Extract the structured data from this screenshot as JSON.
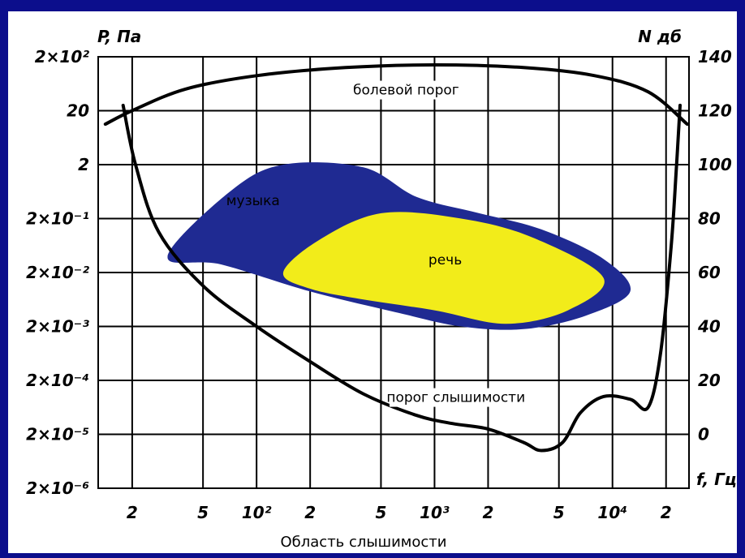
{
  "colors": {
    "background": "#0c0e8c",
    "music_area": "#1f2a92",
    "speech_area": "#f2ec1a",
    "grid": "#000000",
    "panel": "#ffffff"
  },
  "chart_data": {
    "type": "area",
    "title": "",
    "caption": "Область слышимости",
    "left_axis_label": "P, Па",
    "right_axis_label": "N дб",
    "x_axis_label": "f, Гц",
    "left_ticks": [
      "2×10²",
      "20",
      "2",
      "2×10⁻¹",
      "2×10⁻²",
      "2×10⁻³",
      "2×10⁻⁴",
      "2×10⁻⁵",
      "2×10⁻⁶"
    ],
    "right_ticks": [
      "140",
      "120",
      "100",
      "80",
      "60",
      "40",
      "20",
      "0"
    ],
    "bottom_ticks": [
      "2",
      "5",
      "10²",
      "2",
      "5",
      "10³",
      "2",
      "5",
      "10⁴",
      "2"
    ],
    "ylim_db": [
      -20,
      140
    ],
    "xlim_log10_hz": [
      1.11,
      4.43
    ],
    "grid": true,
    "annotations": {
      "pain": "болевой порог",
      "music": "музыка",
      "speech": "речь",
      "hearing": "порог слышимости"
    },
    "series": [
      {
        "key": "pain",
        "points": [
          [
            1.15,
            115
          ],
          [
            1.3,
            120
          ],
          [
            1.6,
            128
          ],
          [
            2.0,
            133
          ],
          [
            2.5,
            136
          ],
          [
            3.0,
            137
          ],
          [
            3.5,
            136
          ],
          [
            3.9,
            133
          ],
          [
            4.2,
            127
          ],
          [
            4.42,
            115
          ]
        ]
      },
      {
        "key": "hearing",
        "points": [
          [
            1.25,
            122
          ],
          [
            1.32,
            100
          ],
          [
            1.45,
            75
          ],
          [
            1.7,
            55
          ],
          [
            2.0,
            40
          ],
          [
            2.3,
            27
          ],
          [
            2.6,
            15
          ],
          [
            2.9,
            7
          ],
          [
            3.1,
            4
          ],
          [
            3.3,
            2
          ],
          [
            3.5,
            -3
          ],
          [
            3.6,
            -6
          ],
          [
            3.72,
            -3
          ],
          [
            3.82,
            8
          ],
          [
            3.95,
            14
          ],
          [
            4.1,
            13
          ],
          [
            4.2,
            10
          ],
          [
            4.27,
            30
          ],
          [
            4.33,
            70
          ],
          [
            4.36,
            100
          ],
          [
            4.38,
            122
          ]
        ]
      },
      {
        "key": "music",
        "points": [
          [
            1.5,
            66
          ],
          [
            1.85,
            90
          ],
          [
            2.15,
            100
          ],
          [
            2.6,
            99
          ],
          [
            2.9,
            88
          ],
          [
            3.25,
            82
          ],
          [
            3.6,
            76
          ],
          [
            3.95,
            65
          ],
          [
            4.1,
            53
          ],
          [
            3.85,
            44
          ],
          [
            3.5,
            39
          ],
          [
            3.15,
            40
          ],
          [
            2.8,
            45
          ],
          [
            2.3,
            53
          ],
          [
            1.8,
            63
          ]
        ]
      },
      {
        "key": "speech",
        "points": [
          [
            2.15,
            60
          ],
          [
            2.35,
            72
          ],
          [
            2.7,
            82
          ],
          [
            3.15,
            80
          ],
          [
            3.55,
            73
          ],
          [
            3.95,
            58
          ],
          [
            3.75,
            46
          ],
          [
            3.4,
            41
          ],
          [
            3.0,
            46
          ],
          [
            2.6,
            50
          ],
          [
            2.3,
            54
          ]
        ]
      }
    ]
  }
}
